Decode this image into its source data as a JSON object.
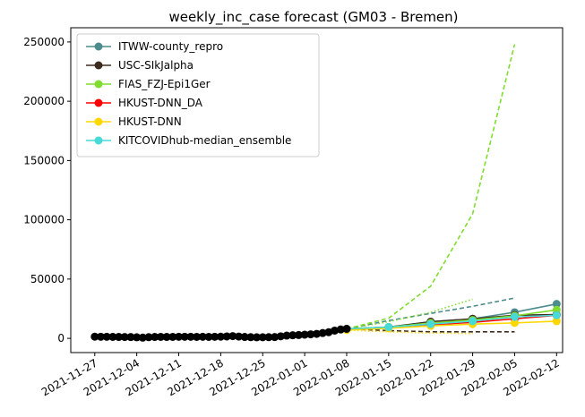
{
  "chart_data": {
    "type": "line",
    "title": "weekly_inc_case forecast (GM03 - Bremen)",
    "xlabel": "",
    "ylabel": "",
    "x_axis": {
      "type": "date",
      "range": [
        "2021-11-23",
        "2022-02-13"
      ],
      "ticks": [
        "2021-11-27",
        "2021-12-04",
        "2021-12-11",
        "2021-12-18",
        "2021-12-25",
        "2022-01-01",
        "2022-01-08",
        "2022-01-15",
        "2022-01-22",
        "2022-01-29",
        "2022-02-05",
        "2022-02-12"
      ]
    },
    "y_axis": {
      "range": [
        -12000,
        262000
      ],
      "ticks": [
        0,
        50000,
        100000,
        150000,
        200000,
        250000
      ],
      "tick_labels": [
        "0",
        "50000",
        "100000",
        "150000",
        "200000",
        "250000"
      ]
    },
    "grid": false,
    "legend_position": "top-left",
    "legend": [
      {
        "name": "ITWW-county_repro",
        "color": "#4c8c8c"
      },
      {
        "name": "USC-SIkJalpha",
        "color": "#3d2b20"
      },
      {
        "name": "FIAS_FZJ-Epi1Ger",
        "color": "#7fdd2d"
      },
      {
        "name": "HKUST-DNN_DA",
        "color": "#ff0000"
      },
      {
        "name": "HKUST-DNN",
        "color": "#ffd700"
      },
      {
        "name": "KITCOVIDhub-median_ensemble",
        "color": "#48d9d9"
      }
    ],
    "observed": {
      "color": "#000000",
      "x": [
        "2021-11-27",
        "2021-11-28",
        "2021-11-29",
        "2021-11-30",
        "2021-12-01",
        "2021-12-02",
        "2021-12-03",
        "2021-12-04",
        "2021-12-05",
        "2021-12-06",
        "2021-12-07",
        "2021-12-08",
        "2021-12-09",
        "2021-12-10",
        "2021-12-11",
        "2021-12-12",
        "2021-12-13",
        "2021-12-14",
        "2021-12-15",
        "2021-12-16",
        "2021-12-17",
        "2021-12-18",
        "2021-12-19",
        "2021-12-20",
        "2021-12-21",
        "2021-12-22",
        "2021-12-23",
        "2021-12-24",
        "2021-12-25",
        "2021-12-26",
        "2021-12-27",
        "2021-12-28",
        "2021-12-29",
        "2021-12-30",
        "2021-12-31",
        "2022-01-01",
        "2022-01-02",
        "2022-01-03",
        "2022-01-04",
        "2022-01-05",
        "2022-01-06",
        "2022-01-07",
        "2022-01-08"
      ],
      "y": [
        1400,
        1350,
        1300,
        1250,
        1200,
        1150,
        1100,
        900,
        600,
        1000,
        1200,
        1250,
        1200,
        1250,
        1300,
        1350,
        1300,
        1250,
        1300,
        1250,
        1300,
        1400,
        1600,
        1900,
        1500,
        1200,
        1000,
        900,
        950,
        1000,
        1100,
        1700,
        2300,
        2600,
        2800,
        3100,
        3400,
        3800,
        4500,
        5200,
        6500,
        7500,
        8000
      ]
    },
    "models": [
      {
        "name": "ITWW-county_repro",
        "color": "#4c8c8c",
        "solid_x": [
          "2022-01-08",
          "2022-01-15",
          "2022-01-22",
          "2022-01-29",
          "2022-02-05",
          "2022-02-12"
        ],
        "solid_y": [
          8000,
          9500,
          14000,
          16500,
          22000,
          29000
        ],
        "dashed_x": [
          "2022-01-08",
          "2022-01-15",
          "2022-01-22",
          "2022-01-29",
          "2022-02-05"
        ],
        "dashed_y": [
          8000,
          15000,
          21000,
          27000,
          34000
        ]
      },
      {
        "name": "USC-SIkJalpha",
        "color": "#3d2b20",
        "solid_x": [
          "2022-01-08",
          "2022-01-15",
          "2022-01-22",
          "2022-01-29",
          "2022-02-05",
          "2022-02-12"
        ],
        "solid_y": [
          8000,
          9500,
          14000,
          16500,
          19500,
          20000
        ],
        "dashed_x": [
          "2022-01-08",
          "2022-01-15",
          "2022-01-22",
          "2022-01-29",
          "2022-02-05"
        ],
        "dashed_y": [
          8000,
          6500,
          5500,
          5500,
          5500
        ]
      },
      {
        "name": "FIAS_FZJ-Epi1Ger",
        "color": "#7fdd2d",
        "solid_x": [
          "2022-01-08",
          "2022-01-15",
          "2022-01-22",
          "2022-01-29",
          "2022-02-05",
          "2022-02-12"
        ],
        "solid_y": [
          8000,
          9500,
          13000,
          15500,
          19000,
          24000
        ],
        "dashed_x": [
          "2022-01-08",
          "2022-01-15",
          "2022-01-22",
          "2022-01-29",
          "2022-02-05"
        ],
        "dashed_y": [
          8000,
          17000,
          44000,
          105000,
          248000
        ],
        "dotted_x": [
          "2022-01-08",
          "2022-01-15",
          "2022-01-22",
          "2022-01-29"
        ],
        "dotted_y": [
          8000,
          14000,
          22000,
          33000
        ]
      },
      {
        "name": "HKUST-DNN_DA",
        "color": "#ff0000",
        "solid_x": [
          "2022-01-08",
          "2022-01-15",
          "2022-01-22",
          "2022-01-29",
          "2022-02-05",
          "2022-02-12"
        ],
        "solid_y": [
          7500,
          9000,
          11500,
          13500,
          16500,
          19500
        ]
      },
      {
        "name": "HKUST-DNN",
        "color": "#ffd700",
        "solid_x": [
          "2022-01-08",
          "2022-01-15",
          "2022-01-22",
          "2022-01-29",
          "2022-02-05",
          "2022-02-12"
        ],
        "solid_y": [
          7000,
          8500,
          10500,
          12000,
          13000,
          14500
        ],
        "dotted_x": [
          "2022-01-08",
          "2022-01-15",
          "2022-01-22",
          "2022-01-29"
        ],
        "dotted_y": [
          7000,
          5500,
          4500,
          4000
        ]
      },
      {
        "name": "KITCOVIDhub-median_ensemble",
        "color": "#48d9d9",
        "solid_x": [
          "2022-01-08",
          "2022-01-15",
          "2022-01-22",
          "2022-01-29",
          "2022-02-05",
          "2022-02-12"
        ],
        "solid_y": [
          8000,
          9500,
          12000,
          14500,
          18000,
          19500
        ]
      }
    ]
  }
}
